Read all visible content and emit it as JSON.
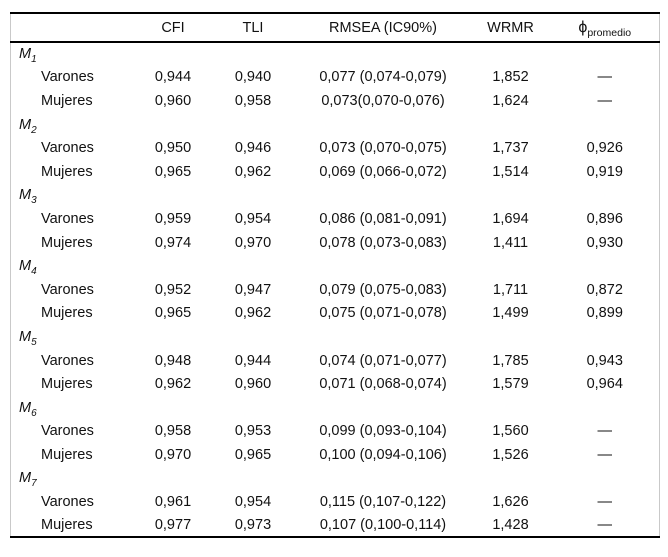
{
  "page": {
    "background": "#ffffff",
    "rule_color": "#000000",
    "side_border_color": "#c9c9c9",
    "text_color": "#111111"
  },
  "table": {
    "header": {
      "label": "",
      "cfi": "CFI",
      "tli": "TLI",
      "rmsea": "RMSEA (IC90%)",
      "wrmr": "WRMR",
      "phi_symbol": "ϕ",
      "phi_subscript": "promedio"
    },
    "groups": [
      {
        "model": "M",
        "sub": "1",
        "rows": [
          {
            "label": "Varones",
            "cfi": "0,944",
            "tli": "0,940",
            "rmsea": "0,077 (0,074-0,079)",
            "wrmr": "1,852",
            "phi": "—"
          },
          {
            "label": "Mujeres",
            "cfi": "0,960",
            "tli": "0,958",
            "rmsea": "0,073(0,070-0,076)",
            "wrmr": "1,624",
            "phi": "—"
          }
        ]
      },
      {
        "model": "M",
        "sub": "2",
        "rows": [
          {
            "label": "Varones",
            "cfi": "0,950",
            "tli": "0,946",
            "rmsea": "0,073 (0,070-0,075)",
            "wrmr": "1,737",
            "phi": "0,926"
          },
          {
            "label": "Mujeres",
            "cfi": "0,965",
            "tli": "0,962",
            "rmsea": "0,069 (0,066-0,072)",
            "wrmr": "1,514",
            "phi": "0,919"
          }
        ]
      },
      {
        "model": "M",
        "sub": "3",
        "rows": [
          {
            "label": "Varones",
            "cfi": "0,959",
            "tli": "0,954",
            "rmsea": "0,086 (0,081-0,091)",
            "wrmr": "1,694",
            "phi": "0,896"
          },
          {
            "label": "Mujeres",
            "cfi": "0,974",
            "tli": "0,970",
            "rmsea": "0,078 (0,073-0,083)",
            "wrmr": "1,411",
            "phi": "0,930"
          }
        ]
      },
      {
        "model": "M",
        "sub": "4",
        "rows": [
          {
            "label": "Varones",
            "cfi": "0,952",
            "tli": "0,947",
            "rmsea": "0,079 (0,075-0,083)",
            "wrmr": "1,711",
            "phi": "0,872"
          },
          {
            "label": "Mujeres",
            "cfi": "0,965",
            "tli": "0,962",
            "rmsea": "0,075 (0,071-0,078)",
            "wrmr": "1,499",
            "phi": "0,899"
          }
        ]
      },
      {
        "model": "M",
        "sub": "5",
        "rows": [
          {
            "label": "Varones",
            "cfi": "0,948",
            "tli": "0,944",
            "rmsea": "0,074 (0,071-0,077)",
            "wrmr": "1,785",
            "phi": "0,943"
          },
          {
            "label": "Mujeres",
            "cfi": "0,962",
            "tli": "0,960",
            "rmsea": "0,071 (0,068-0,074)",
            "wrmr": "1,579",
            "phi": "0,964"
          }
        ]
      },
      {
        "model": "M",
        "sub": "6",
        "rows": [
          {
            "label": "Varones",
            "cfi": "0,958",
            "tli": "0,953",
            "rmsea": "0,099 (0,093-0,104)",
            "wrmr": "1,560",
            "phi": "—"
          },
          {
            "label": "Mujeres",
            "cfi": "0,970",
            "tli": "0,965",
            "rmsea": "0,100 (0,094-0,106)",
            "wrmr": "1,526",
            "phi": "—"
          }
        ]
      },
      {
        "model": "M",
        "sub": "7",
        "rows": [
          {
            "label": "Varones",
            "cfi": "0,961",
            "tli": "0,954",
            "rmsea": "0,115 (0,107-0,122)",
            "wrmr": "1,626",
            "phi": "—"
          },
          {
            "label": "Mujeres",
            "cfi": "0,977",
            "tli": "0,973",
            "rmsea": "0,107 (0,100-0,114)",
            "wrmr": "1,428",
            "phi": "—"
          }
        ]
      }
    ]
  }
}
